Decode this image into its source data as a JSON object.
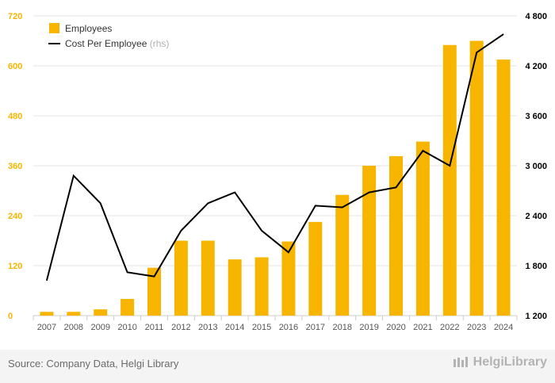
{
  "footer": {
    "source": "Source: Company Data, Helgi Library",
    "brand": "HelgiLibrary"
  },
  "colors": {
    "bar": "#f7b500",
    "line": "#000000",
    "leftAxis": "#f7b500",
    "rightAxis": "#000000",
    "grid": "#e6e6e6"
  },
  "chart_data": {
    "type": "bar",
    "categories": [
      "2007",
      "2008",
      "2009",
      "2010",
      "2011",
      "2012",
      "2013",
      "2014",
      "2015",
      "2016",
      "2017",
      "2018",
      "2019",
      "2020",
      "2021",
      "2022",
      "2023",
      "2024"
    ],
    "series": [
      {
        "name": "Employees",
        "type": "bar",
        "axis": "left",
        "values": [
          9,
          9,
          15,
          40,
          115,
          180,
          180,
          135,
          140,
          178,
          225,
          290,
          360,
          383,
          418,
          650,
          660,
          615
        ]
      },
      {
        "name": "Cost Per Employee",
        "type": "line",
        "axis": "right",
        "values": [
          1620,
          2880,
          2550,
          1720,
          1670,
          2220,
          2550,
          2680,
          2220,
          1960,
          2520,
          2500,
          2680,
          2740,
          3180,
          3000,
          4360,
          4580
        ]
      }
    ],
    "legend": [
      {
        "label": "Employees",
        "suffix": ""
      },
      {
        "label": "Cost Per Employee",
        "suffix": "(rhs)"
      }
    ],
    "yLeft": {
      "min": 0,
      "max": 720,
      "ticks": [
        "0",
        "120",
        "240",
        "360",
        "480",
        "600",
        "720"
      ]
    },
    "yRight": {
      "min": 1200,
      "max": 4800,
      "ticks": [
        "1 200",
        "1 800",
        "2 400",
        "3 000",
        "3 600",
        "4 200",
        "4 800"
      ]
    },
    "grid": true,
    "legend_position": "top-left"
  }
}
